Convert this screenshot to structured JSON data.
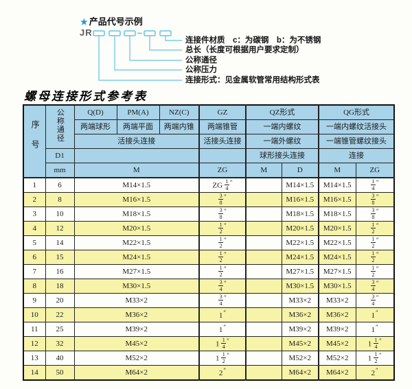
{
  "diagram": {
    "star": "★",
    "heading": "产品代号示例",
    "code_prefix": "JR",
    "labels": [
      "连接件材质　c：为碳钢　b：为不锈钢",
      "总长（长度可根据用户要求定制）",
      "公称通径",
      "公称压力",
      "连接形式：见金属软管常用结构形式表"
    ]
  },
  "table": {
    "title": "螺母连接形式参考表",
    "header": {
      "seq": "序号",
      "nominal_diameter": "公称通径",
      "d1": "D1",
      "mm": "mm",
      "q": "Q(D)",
      "pm": "PM(A)",
      "nz": "NZ(C)",
      "gz": "GZ",
      "qz": "QZ形式",
      "qg": "QG形式",
      "q_desc": "两端球形",
      "pm_desc": "两端平面",
      "nz_desc": "两端内锥",
      "gz_desc": "两端锥管",
      "qz_desc1": "一端内螺纹",
      "qg_desc1": "一端内螺纹活接头",
      "union_conn": "活接头连接",
      "gz_conn": "活接头连接",
      "qz_desc2": "一端外螺纹",
      "qg_desc2": "一端锥管螺纹接头",
      "qz_conn": "球形接头连接",
      "qg_conn": "连接",
      "m": "M",
      "zg": "ZG",
      "qz_m": "M",
      "qz_d": "D",
      "qg_m": "M",
      "qg_zg": "ZG"
    },
    "rows": [
      [
        "1",
        "6",
        "M14×1.5",
        "ZG 1/4″",
        "",
        "M14×1.5",
        "M14×1.5",
        "1/4″"
      ],
      [
        "2",
        "8",
        "M16×1.5",
        "3/8″",
        "",
        "M16×1.5",
        "M16×1.5",
        "3/8″"
      ],
      [
        "3",
        "10",
        "M18×1.5",
        "3/8″",
        "",
        "M18×1.5",
        "M18×1.5",
        "3/8″"
      ],
      [
        "4",
        "12",
        "M20×1.5",
        "1/2″",
        "",
        "M20×1.5",
        "M20×1.5",
        "1/2″"
      ],
      [
        "5",
        "14",
        "M22×1.5",
        "1/2″",
        "",
        "M22×1.5",
        "M22×1.5",
        "1/2″"
      ],
      [
        "6",
        "15",
        "M24×1.5",
        "1/2″",
        "",
        "M24×1.5",
        "M24×1.5",
        "1/2″"
      ],
      [
        "7",
        "16",
        "M27×1.5",
        "1/2″",
        "",
        "M27×1.5",
        "M27×1.5",
        "1/2″"
      ],
      [
        "8",
        "18",
        "M30×1.5",
        "3/4″",
        "",
        "M30×1.5",
        "M30×1.5",
        "3/4″"
      ],
      [
        "9",
        "20",
        "M33×2",
        "3/4″",
        "",
        "M33×2",
        "M33×2",
        "3/4″"
      ],
      [
        "10",
        "22",
        "M36×2",
        "1″",
        "",
        "M36×2",
        "M36×2",
        "1″"
      ],
      [
        "11",
        "25",
        "M39×2",
        "1″",
        "",
        "M39×2",
        "M39×2",
        "1″"
      ],
      [
        "12",
        "32",
        "M45×2",
        "1 1/4″",
        "",
        "M45×2",
        "M45×2",
        "1 1/4″"
      ],
      [
        "13",
        "40",
        "M52×2",
        "1 1/2″",
        "",
        "M52×2",
        "M52×2",
        "1 1/2″"
      ],
      [
        "14",
        "50",
        "M64×2",
        "2″",
        "",
        "M64×2",
        "M64×2",
        "2″"
      ]
    ],
    "colors": {
      "header_bg": "#a9d3e9",
      "row_alt_bg": "#f7f3a8",
      "row_bg": "#fdfdfa",
      "accent_cyan": "#62c4e2",
      "star_blue": "#1a9cd6"
    }
  }
}
